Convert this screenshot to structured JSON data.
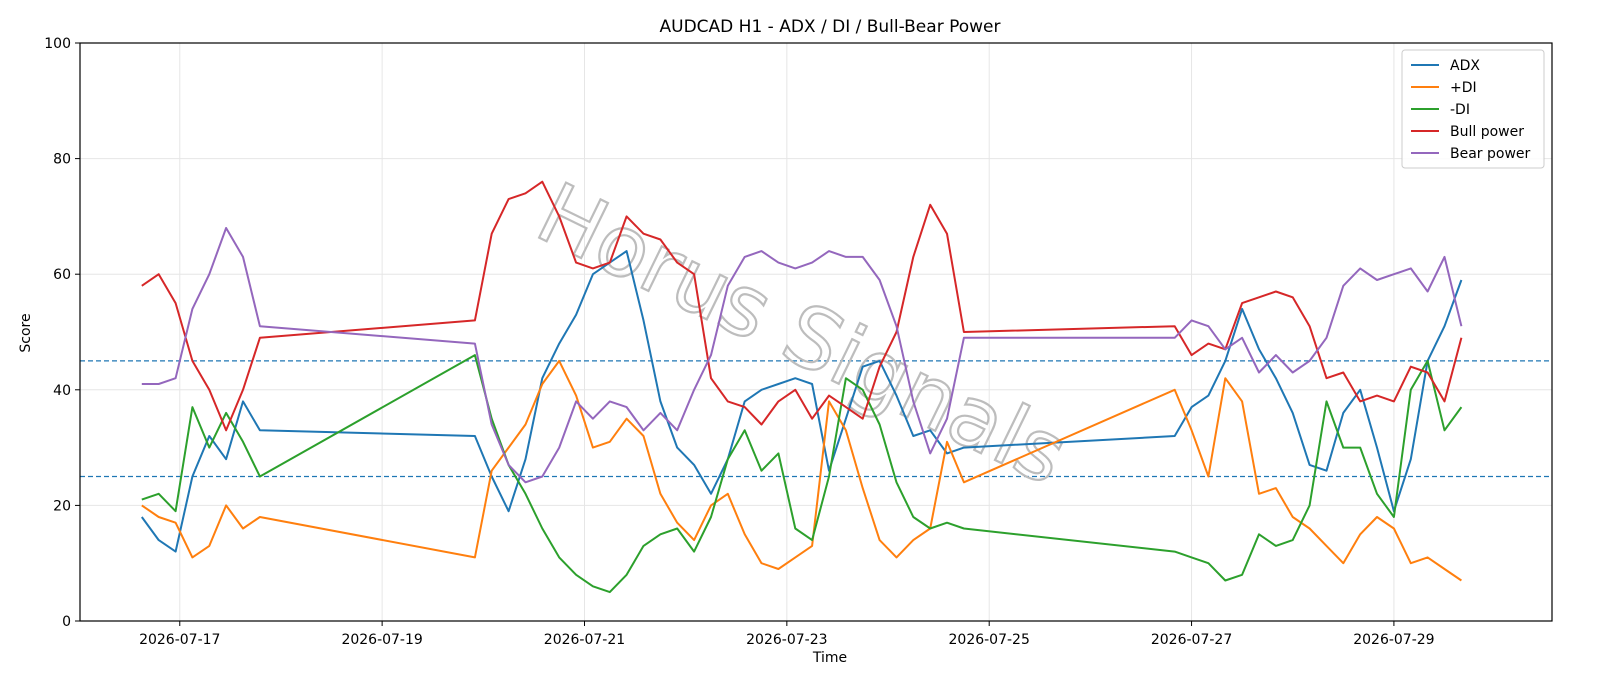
{
  "chart_data": {
    "type": "line",
    "title": "AUDCAD H1 - ADX / DI / Bull-Bear Power",
    "xlabel": "Time",
    "ylabel": "Score",
    "ylim": [
      0,
      100
    ],
    "xlim": [
      "2026-07-16T00:20",
      "2026-07-30T13:30"
    ],
    "x_tick_labels": [
      "2026-07-17",
      "2026-07-19",
      "2026-07-21",
      "2026-07-23",
      "2026-07-25",
      "2026-07-27",
      "2026-07-29"
    ],
    "y_tick_labels": [
      "0",
      "20",
      "40",
      "60",
      "80",
      "100"
    ],
    "grid": true,
    "legend_position": "top-right",
    "reference_lines": [
      {
        "y": 45,
        "color": "#1f77b4",
        "style": "dashed"
      },
      {
        "y": 25,
        "color": "#1f77b4",
        "style": "dashed"
      }
    ],
    "watermark": "Horus Signals",
    "x": [
      "2026-07-16T15:00",
      "2026-07-16T19:00",
      "2026-07-16T23:00",
      "2026-07-17T03:00",
      "2026-07-17T07:00",
      "2026-07-17T11:00",
      "2026-07-17T15:00",
      "2026-07-17T19:00",
      "2026-07-19T22:00",
      "2026-07-20T02:00",
      "2026-07-20T06:00",
      "2026-07-20T10:00",
      "2026-07-20T14:00",
      "2026-07-20T18:00",
      "2026-07-20T22:00",
      "2026-07-21T02:00",
      "2026-07-21T06:00",
      "2026-07-21T10:00",
      "2026-07-21T14:00",
      "2026-07-21T18:00",
      "2026-07-21T22:00",
      "2026-07-22T02:00",
      "2026-07-22T06:00",
      "2026-07-22T10:00",
      "2026-07-22T14:00",
      "2026-07-22T18:00",
      "2026-07-22T22:00",
      "2026-07-23T02:00",
      "2026-07-23T06:00",
      "2026-07-23T10:00",
      "2026-07-23T14:00",
      "2026-07-23T18:00",
      "2026-07-23T22:00",
      "2026-07-24T02:00",
      "2026-07-24T06:00",
      "2026-07-24T10:00",
      "2026-07-24T14:00",
      "2026-07-24T18:00",
      "2026-07-26T20:00",
      "2026-07-27T00:00",
      "2026-07-27T04:00",
      "2026-07-27T08:00",
      "2026-07-27T12:00",
      "2026-07-27T16:00",
      "2026-07-27T20:00",
      "2026-07-28T00:00",
      "2026-07-28T04:00",
      "2026-07-28T08:00",
      "2026-07-28T12:00",
      "2026-07-28T16:00",
      "2026-07-28T20:00",
      "2026-07-29T00:00",
      "2026-07-29T04:00",
      "2026-07-29T08:00",
      "2026-07-29T12:00",
      "2026-07-29T16:00"
    ],
    "series": [
      {
        "name": "ADX",
        "color": "#1f77b4",
        "values": [
          18,
          14,
          12,
          25,
          32,
          28,
          38,
          33,
          32,
          25,
          19,
          28,
          42,
          48,
          53,
          60,
          62,
          64,
          52,
          38,
          30,
          27,
          22,
          28,
          38,
          40,
          41,
          42,
          41,
          26,
          35,
          44,
          45,
          39,
          32,
          33,
          29,
          30,
          32,
          37,
          39,
          45,
          54,
          47,
          42,
          36,
          27,
          26,
          36,
          40,
          30,
          19,
          28,
          45,
          51,
          59
        ]
      },
      {
        "name": "+DI",
        "color": "#ff7f0e",
        "values": [
          20,
          18,
          17,
          11,
          13,
          20,
          16,
          18,
          11,
          26,
          30,
          34,
          41,
          45,
          39,
          30,
          31,
          35,
          32,
          22,
          17,
          14,
          20,
          22,
          15,
          10,
          9,
          11,
          13,
          38,
          33,
          23,
          14,
          11,
          14,
          16,
          31,
          24,
          40,
          33,
          25,
          42,
          38,
          22,
          23,
          18,
          16,
          13,
          10,
          15,
          18,
          16,
          10,
          11,
          9,
          7
        ]
      },
      {
        "name": "-DI",
        "color": "#2ca02c",
        "values": [
          21,
          22,
          19,
          37,
          30,
          36,
          31,
          25,
          46,
          35,
          27,
          22,
          16,
          11,
          8,
          6,
          5,
          8,
          13,
          15,
          16,
          12,
          18,
          28,
          33,
          26,
          29,
          16,
          14,
          25,
          42,
          40,
          34,
          24,
          18,
          16,
          17,
          16,
          12,
          11,
          10,
          7,
          8,
          15,
          13,
          14,
          20,
          38,
          30,
          30,
          22,
          18,
          40,
          45,
          33,
          37
        ]
      },
      {
        "name": "Bull power",
        "color": "#d62728",
        "values": [
          58,
          60,
          55,
          45,
          40,
          33,
          40,
          49,
          52,
          67,
          73,
          74,
          76,
          70,
          62,
          61,
          62,
          70,
          67,
          66,
          62,
          60,
          42,
          38,
          37,
          34,
          38,
          40,
          35,
          39,
          37,
          35,
          44,
          50,
          63,
          72,
          67,
          50,
          51,
          46,
          48,
          47,
          55,
          56,
          57,
          56,
          51,
          42,
          43,
          38,
          39,
          38,
          44,
          43,
          38,
          49
        ]
      },
      {
        "name": "Bear power",
        "color": "#9467bd",
        "values": [
          41,
          41,
          42,
          54,
          60,
          68,
          63,
          51,
          48,
          34,
          27,
          24,
          25,
          30,
          38,
          35,
          38,
          37,
          33,
          36,
          33,
          40,
          46,
          58,
          63,
          64,
          62,
          61,
          62,
          64,
          63,
          63,
          59,
          51,
          38,
          29,
          35,
          49,
          49,
          52,
          51,
          47,
          49,
          43,
          46,
          43,
          45,
          49,
          58,
          61,
          59,
          60,
          61,
          57,
          63,
          51
        ]
      }
    ]
  }
}
